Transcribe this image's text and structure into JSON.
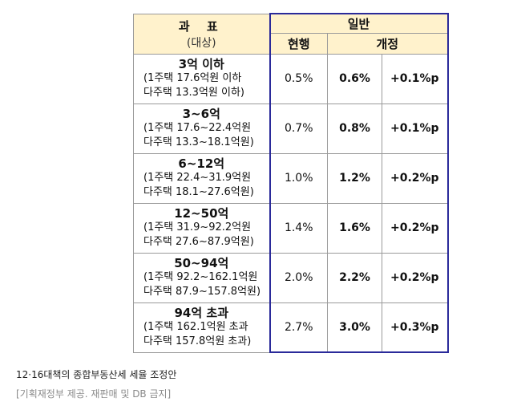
{
  "header": {
    "tax_base_title": "과 표",
    "tax_base_sub": "(대상)",
    "general": "일반",
    "current": "현행",
    "revised": "개정"
  },
  "rows": [
    {
      "range": "3억 이하",
      "line1": "(1주택 17.6억원 이하",
      "line2": "다주택 13.3억원 이하)",
      "current": "0.5%",
      "revised": "0.6%",
      "change": "+0.1%p"
    },
    {
      "range": "3~6억",
      "line1": "(1주택 17.6~22.4억원",
      "line2": "다주택 13.3~18.1억원)",
      "current": "0.7%",
      "revised": "0.8%",
      "change": "+0.1%p"
    },
    {
      "range": "6~12억",
      "line1": "(1주택 22.4~31.9억원",
      "line2": "다주택 18.1~27.6억원)",
      "current": "1.0%",
      "revised": "1.2%",
      "change": "+0.2%p"
    },
    {
      "range": "12~50억",
      "line1": "(1주택 31.9~92.2억원",
      "line2": "다주택 27.6~87.9억원)",
      "current": "1.4%",
      "revised": "1.6%",
      "change": "+0.2%p"
    },
    {
      "range": "50~94억",
      "line1": "(1주택 92.2~162.1억원",
      "line2": "다주택 87.9~157.8억원)",
      "current": "2.0%",
      "revised": "2.2%",
      "change": "+0.2%p"
    },
    {
      "range": "94억 초과",
      "line1": "(1주택 162.1억원 초과",
      "line2": "다주택 157.8억원 초과)",
      "current": "2.7%",
      "revised": "3.0%",
      "change": "+0.3%p"
    }
  ],
  "caption": "12·16대책의 종합부동산세 세율 조정안",
  "credit": "[기획재정부 제공. 재판매 및 DB 금지]"
}
